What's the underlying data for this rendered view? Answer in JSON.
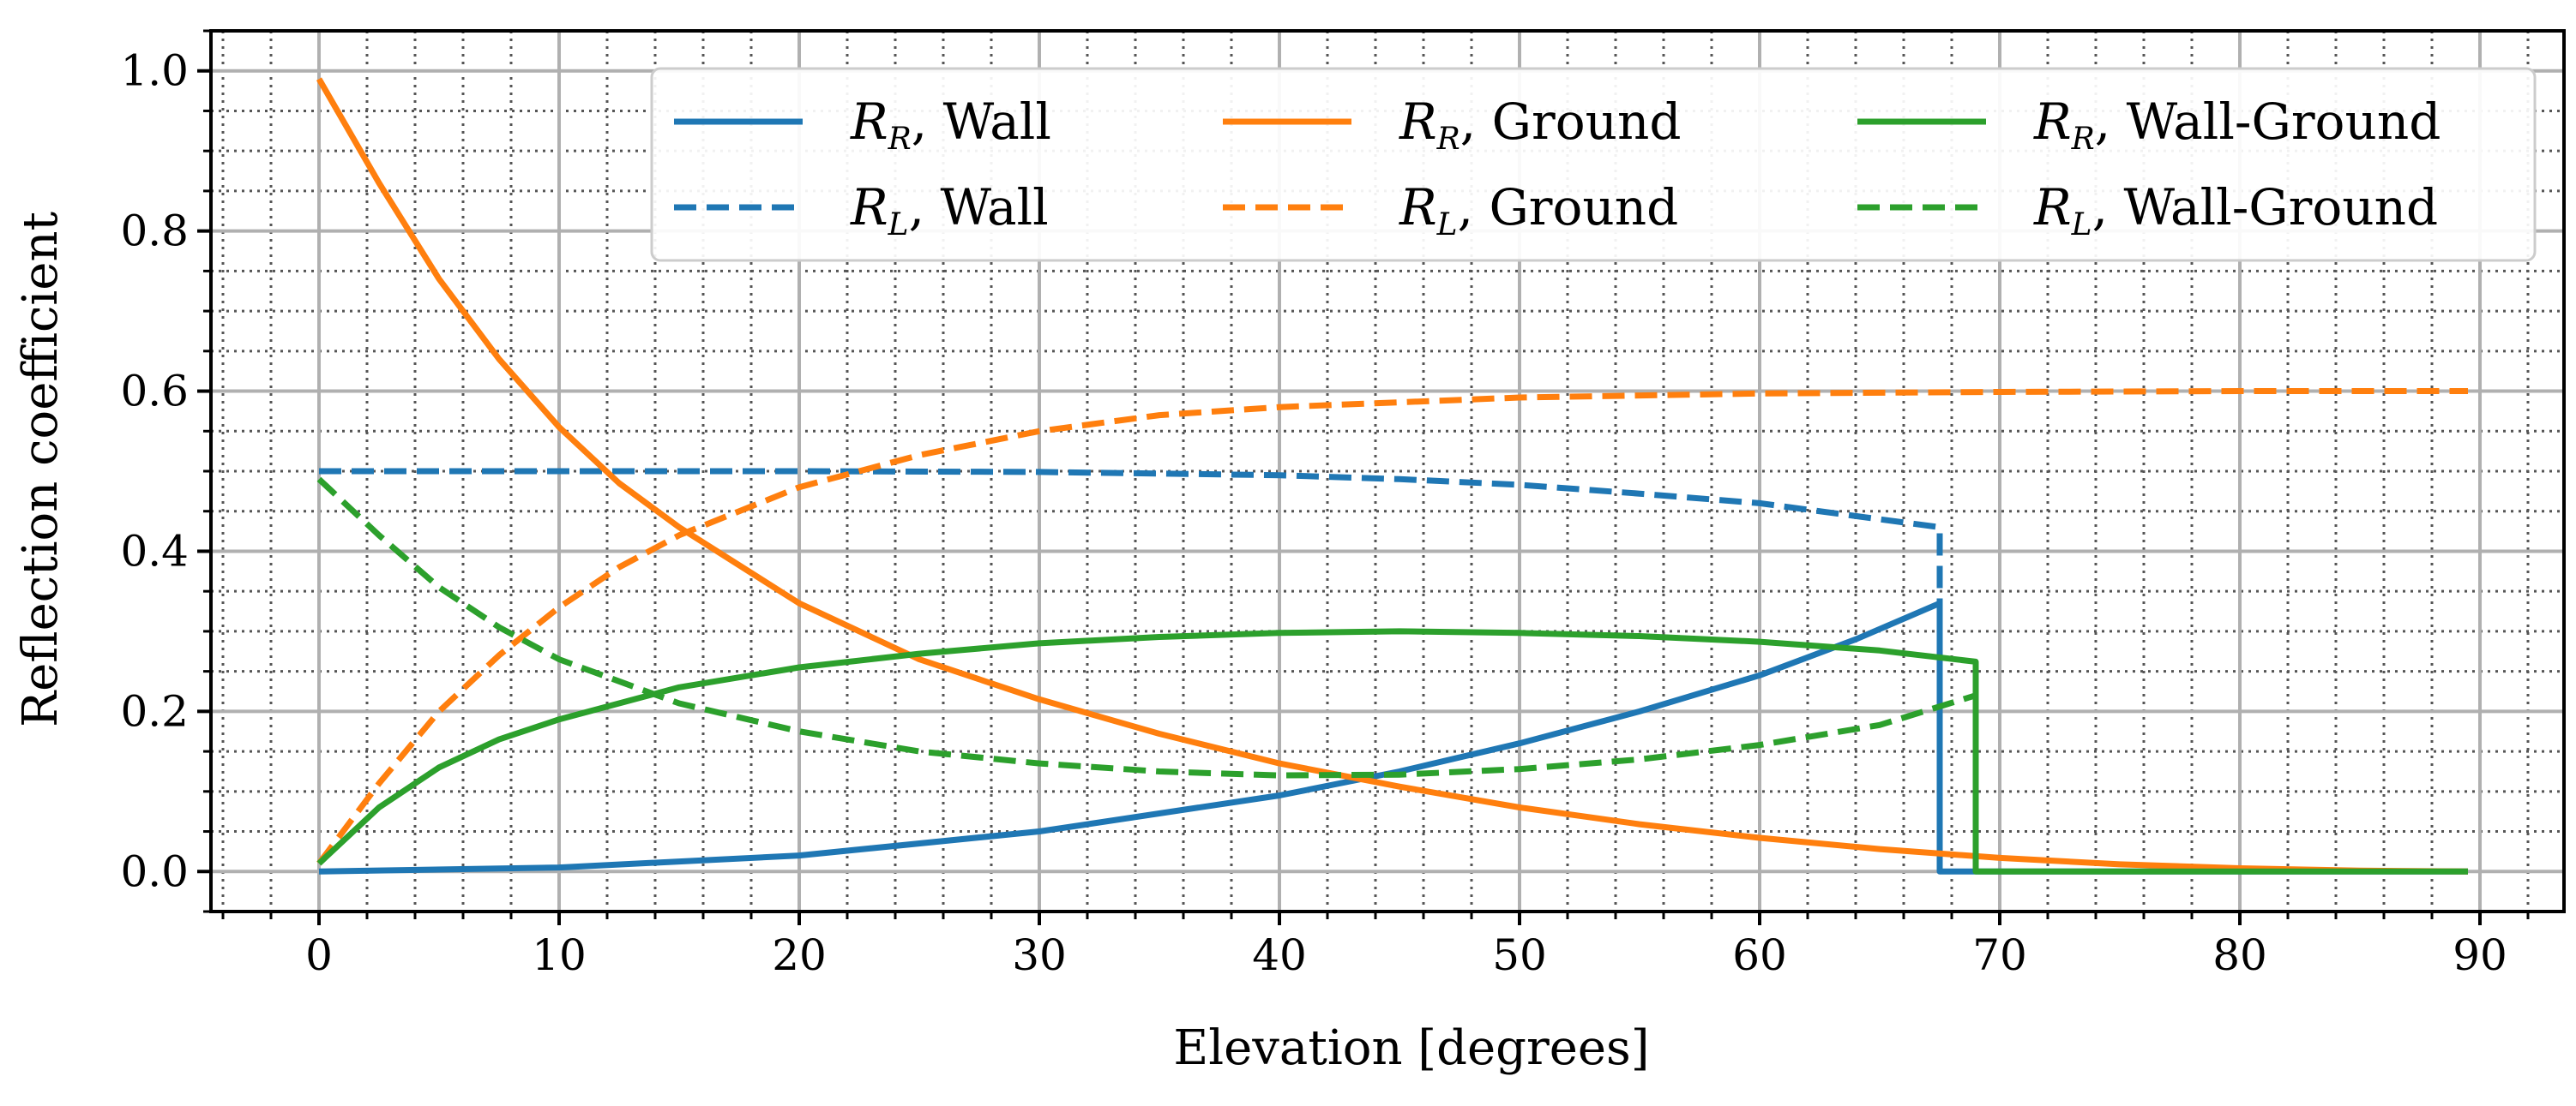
{
  "chart_data": {
    "type": "line",
    "xlabel": "Elevation [degrees]",
    "ylabel": "Reflection coefficient",
    "xlim": [
      -4.5,
      93.5
    ],
    "ylim": [
      -0.05,
      1.05
    ],
    "xticks": [
      0,
      10,
      20,
      30,
      40,
      50,
      60,
      70,
      80,
      90
    ],
    "xtick_labels": [
      "0",
      "10",
      "20",
      "30",
      "40",
      "50",
      "60",
      "70",
      "80",
      "90"
    ],
    "yticks": [
      0.0,
      0.2,
      0.4,
      0.6,
      0.8,
      1.0
    ],
    "ytick_labels": [
      "0.0",
      "0.2",
      "0.4",
      "0.6",
      "0.8",
      "1.0"
    ],
    "x_minor_step": 2,
    "y_minor_step": 0.05,
    "grid": "major solid, minor dotted",
    "legend_position": "top-right",
    "legend_columns": 3,
    "colors": {
      "wall": "#1f77b4",
      "ground": "#ff7f0e",
      "wall_ground": "#2ca02c"
    },
    "series": [
      {
        "name": "R_R, Wall",
        "legend_symbol": "R",
        "legend_subscript": "R",
        "legend_suffix": ", Wall",
        "color_key": "wall",
        "dashed": false,
        "x": [
          0,
          10,
          20,
          30,
          40,
          45,
          50,
          55,
          60,
          64,
          67.5,
          67.5,
          89.5
        ],
        "y": [
          0,
          0.005,
          0.02,
          0.05,
          0.095,
          0.125,
          0.16,
          0.2,
          0.245,
          0.29,
          0.335,
          0,
          0
        ]
      },
      {
        "name": "R_L, Wall",
        "legend_symbol": "R",
        "legend_subscript": "L",
        "legend_suffix": ", Wall",
        "color_key": "wall",
        "dashed": true,
        "x": [
          0,
          10,
          20,
          30,
          40,
          45,
          50,
          55,
          60,
          65,
          67.5,
          67.5
        ],
        "y": [
          0.5,
          0.5,
          0.5,
          0.499,
          0.495,
          0.49,
          0.483,
          0.472,
          0.46,
          0.44,
          0.43,
          0
        ]
      },
      {
        "name": "R_R, Ground",
        "legend_symbol": "R",
        "legend_subscript": "R",
        "legend_suffix": ", Ground",
        "color_key": "ground",
        "dashed": false,
        "x": [
          0,
          2.5,
          5,
          7.5,
          10,
          12.5,
          15,
          20,
          25,
          30,
          35,
          40,
          45,
          50,
          55,
          60,
          65,
          70,
          75,
          80,
          85,
          89.5
        ],
        "y": [
          0.99,
          0.86,
          0.74,
          0.64,
          0.555,
          0.485,
          0.43,
          0.335,
          0.265,
          0.215,
          0.172,
          0.135,
          0.106,
          0.08,
          0.059,
          0.042,
          0.028,
          0.017,
          0.009,
          0.004,
          0.001,
          0
        ]
      },
      {
        "name": "R_L, Ground",
        "legend_symbol": "R",
        "legend_subscript": "L",
        "legend_suffix": ", Ground",
        "color_key": "ground",
        "dashed": true,
        "x": [
          0,
          2.5,
          5,
          7.5,
          10,
          12.5,
          15,
          20,
          25,
          30,
          35,
          40,
          50,
          60,
          70,
          80,
          89.5
        ],
        "y": [
          0.01,
          0.11,
          0.2,
          0.27,
          0.33,
          0.38,
          0.42,
          0.48,
          0.52,
          0.55,
          0.57,
          0.58,
          0.592,
          0.597,
          0.599,
          0.6,
          0.6
        ]
      },
      {
        "name": "R_R, Wall-Ground",
        "legend_symbol": "R",
        "legend_subscript": "R",
        "legend_suffix": ", Wall-Ground",
        "color_key": "wall_ground",
        "dashed": false,
        "x": [
          0,
          2.5,
          5,
          7.5,
          10,
          15,
          20,
          25,
          30,
          35,
          40,
          45,
          50,
          55,
          60,
          65,
          69,
          69,
          89.5
        ],
        "y": [
          0.01,
          0.08,
          0.13,
          0.165,
          0.19,
          0.23,
          0.255,
          0.272,
          0.285,
          0.293,
          0.298,
          0.3,
          0.298,
          0.294,
          0.287,
          0.276,
          0.262,
          0,
          0
        ]
      },
      {
        "name": "R_L, Wall-Ground",
        "legend_symbol": "R",
        "legend_subscript": "L",
        "legend_suffix": ", Wall-Ground",
        "color_key": "wall_ground",
        "dashed": true,
        "x": [
          0,
          2.5,
          5,
          7.5,
          10,
          15,
          20,
          25,
          30,
          35,
          40,
          45,
          50,
          55,
          60,
          65,
          69
        ],
        "y": [
          0.49,
          0.42,
          0.355,
          0.305,
          0.265,
          0.21,
          0.175,
          0.15,
          0.135,
          0.125,
          0.12,
          0.121,
          0.128,
          0.14,
          0.158,
          0.183,
          0.22
        ]
      }
    ]
  }
}
